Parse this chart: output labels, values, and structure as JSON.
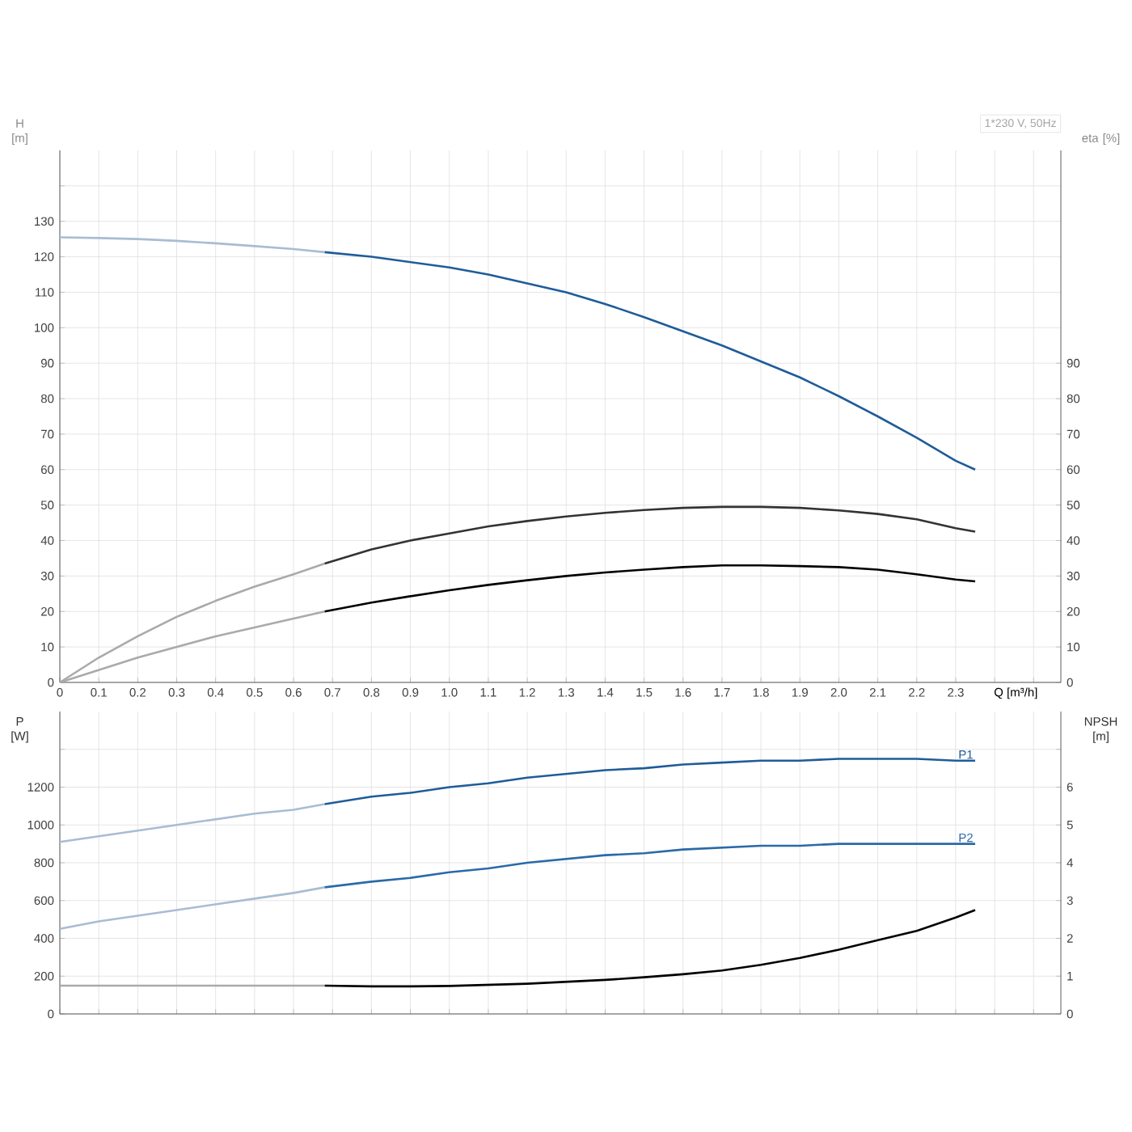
{
  "chart_data": [
    {
      "type": "line",
      "title": "1*230 V, 50Hz",
      "xlabel": "Q [m³/h]",
      "ylabel": "H [m]",
      "y2label": "eta [%]",
      "xlim": [
        0,
        2.57
      ],
      "xticks": [
        0,
        0.1,
        0.2,
        0.3,
        0.4,
        0.5,
        0.6,
        0.7,
        0.8,
        0.9,
        {
          "value": 1,
          "label": "1.0"
        },
        1.1,
        1.2,
        1.3,
        1.4,
        1.5,
        1.6,
        1.7,
        1.8,
        1.9,
        {
          "value": 2,
          "label": "2.0"
        },
        2.1,
        2.2,
        2.3,
        {
          "value": 2.4,
          "label": null
        },
        {
          "value": 2.5,
          "label": null
        }
      ],
      "ylim": [
        0,
        150
      ],
      "yticks": [
        0,
        10,
        20,
        30,
        40,
        50,
        60,
        70,
        80,
        90,
        100,
        110,
        120,
        130,
        {
          "value": 140,
          "label": null
        }
      ],
      "y2lim": [
        0,
        150
      ],
      "y2ticks": [
        0,
        10,
        20,
        30,
        40,
        50,
        60,
        70,
        80,
        90
      ],
      "grid": true,
      "marker": "none",
      "line_style": "solid",
      "series": [
        {
          "color": "#a9bcd3",
          "x": [
            0,
            0.1,
            0.2,
            0.3,
            0.4,
            0.5,
            0.6,
            0.68
          ],
          "values": [
            125.5,
            125.3,
            125,
            124.5,
            123.8,
            123,
            122.2,
            121.3
          ]
        },
        {
          "color": "#1f5c99",
          "x": [
            0.68,
            0.8,
            0.9,
            1.0,
            1.1,
            1.2,
            1.3,
            1.4,
            1.5,
            1.6,
            1.7,
            1.8,
            1.9,
            2.0,
            2.1,
            2.2,
            2.3,
            2.35
          ],
          "values": [
            121.3,
            120,
            118.5,
            117,
            115,
            112.5,
            110,
            106.7,
            103,
            99,
            95,
            90.5,
            86,
            80.7,
            75,
            69,
            62.5,
            60
          ]
        },
        {
          "color": "#aaaaaa",
          "axis": "y2",
          "x": [
            0,
            0.1,
            0.2,
            0.3,
            0.4,
            0.5,
            0.6,
            0.68
          ],
          "values": [
            0,
            7,
            13,
            18.5,
            23,
            27,
            30.5,
            33.5
          ]
        },
        {
          "color": "#333333",
          "axis": "y2",
          "x": [
            0.68,
            0.8,
            0.9,
            1.0,
            1.1,
            1.2,
            1.3,
            1.4,
            1.5,
            1.6,
            1.7,
            1.8,
            1.9,
            2.0,
            2.1,
            2.2,
            2.3,
            2.35
          ],
          "values": [
            33.5,
            37.5,
            40,
            42,
            44,
            45.5,
            46.8,
            47.8,
            48.6,
            49.2,
            49.5,
            49.5,
            49.2,
            48.5,
            47.5,
            46,
            43.5,
            42.5
          ]
        },
        {
          "color": "#aaaaaa",
          "axis": "y2",
          "x": [
            0,
            0.1,
            0.2,
            0.3,
            0.4,
            0.5,
            0.6,
            0.68
          ],
          "values": [
            0,
            3.5,
            7,
            10,
            13,
            15.5,
            18,
            20
          ]
        },
        {
          "color": "#000000",
          "axis": "y2",
          "x": [
            0.68,
            0.8,
            0.9,
            1.0,
            1.1,
            1.2,
            1.3,
            1.4,
            1.5,
            1.6,
            1.7,
            1.8,
            1.9,
            2.0,
            2.1,
            2.2,
            2.3,
            2.35
          ],
          "values": [
            20,
            22.5,
            24.3,
            26,
            27.5,
            28.8,
            30,
            31,
            31.8,
            32.5,
            33,
            33,
            32.8,
            32.5,
            31.8,
            30.5,
            29,
            28.5
          ]
        }
      ]
    },
    {
      "type": "line",
      "ylabel": "P [W]",
      "y2label": "NPSH [m]",
      "xlim": [
        0,
        2.57
      ],
      "xticks": [
        0,
        0.1,
        0.2,
        0.3,
        0.4,
        0.5,
        0.6,
        0.7,
        0.8,
        0.9,
        1.0,
        1.1,
        1.2,
        1.3,
        1.4,
        1.5,
        1.6,
        1.7,
        1.8,
        1.9,
        2.0,
        2.1,
        2.2,
        2.3,
        2.4,
        2.5
      ],
      "ylim": [
        0,
        1600
      ],
      "yticks": [
        0,
        200,
        400,
        600,
        800,
        1000,
        1200,
        {
          "value": 1400,
          "label": null
        }
      ],
      "y2lim": [
        0,
        8
      ],
      "y2ticks": [
        0,
        1,
        2,
        3,
        4,
        5,
        6,
        {
          "value": 7,
          "label": null
        }
      ],
      "tick_labels": "y",
      "grid": true,
      "marker": "none",
      "line_style": "solid",
      "series": [
        {
          "color": "#a9bcd3",
          "x": [
            0,
            0.1,
            0.2,
            0.3,
            0.4,
            0.5,
            0.6,
            0.68
          ],
          "values": [
            910,
            940,
            970,
            1000,
            1030,
            1060,
            1080,
            1110
          ]
        },
        {
          "name": "P1",
          "color": "#1f5c99",
          "x": [
            0.68,
            0.8,
            0.9,
            1.0,
            1.1,
            1.2,
            1.3,
            1.4,
            1.5,
            1.6,
            1.7,
            1.8,
            1.9,
            2.0,
            2.1,
            2.2,
            2.3,
            2.35
          ],
          "values": [
            1110,
            1150,
            1170,
            1200,
            1220,
            1250,
            1270,
            1290,
            1300,
            1320,
            1330,
            1340,
            1340,
            1350,
            1350,
            1350,
            1340,
            1340
          ]
        },
        {
          "color": "#a9bcd3",
          "x": [
            0,
            0.1,
            0.2,
            0.3,
            0.4,
            0.5,
            0.6,
            0.68
          ],
          "values": [
            450,
            490,
            520,
            550,
            580,
            610,
            640,
            670
          ]
        },
        {
          "name": "P2",
          "color": "#2a6aa8",
          "x": [
            0.68,
            0.8,
            0.9,
            1.0,
            1.1,
            1.2,
            1.3,
            1.4,
            1.5,
            1.6,
            1.7,
            1.8,
            1.9,
            2.0,
            2.1,
            2.2,
            2.3,
            2.35
          ],
          "values": [
            670,
            700,
            720,
            750,
            770,
            800,
            820,
            840,
            850,
            870,
            880,
            890,
            890,
            900,
            900,
            900,
            900,
            900
          ]
        },
        {
          "color": "#aaaaaa",
          "axis": "y2",
          "x": [
            0,
            0.1,
            0.2,
            0.3,
            0.4,
            0.5,
            0.6,
            0.68
          ],
          "values": [
            0.75,
            0.75,
            0.75,
            0.75,
            0.75,
            0.75,
            0.75,
            0.75
          ]
        },
        {
          "color": "#000000",
          "axis": "y2",
          "x": [
            0.68,
            0.8,
            0.9,
            1.0,
            1.1,
            1.2,
            1.3,
            1.4,
            1.5,
            1.6,
            1.7,
            1.8,
            1.9,
            2.0,
            2.1,
            2.2,
            2.3,
            2.35
          ],
          "values": [
            0.75,
            0.73,
            0.73,
            0.74,
            0.77,
            0.8,
            0.85,
            0.9,
            0.97,
            1.05,
            1.15,
            1.3,
            1.48,
            1.7,
            1.95,
            2.2,
            2.55,
            2.75
          ]
        }
      ]
    }
  ]
}
